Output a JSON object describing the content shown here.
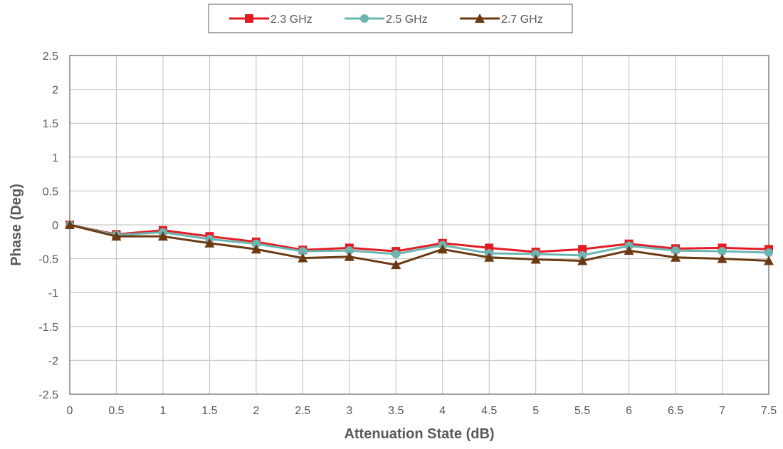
{
  "chart_data": {
    "type": "line",
    "title": "",
    "xlabel": "Attenuation State (dB)",
    "ylabel": "Phase (Deg)",
    "xlim": [
      0,
      7.5
    ],
    "ylim": [
      -2.5,
      2.5
    ],
    "x_ticks": [
      "0",
      "0.5",
      "1",
      "1.5",
      "2",
      "2.5",
      "3",
      "3.5",
      "4",
      "4.5",
      "5",
      "5.5",
      "6",
      "6.5",
      "7",
      "7.5"
    ],
    "y_ticks": [
      "2.5",
      "2",
      "1.5",
      "1",
      "0.5",
      "0",
      "-0.5",
      "-1",
      "-1.5",
      "-2",
      "-2.5"
    ],
    "grid": true,
    "legend_position": "top",
    "x": [
      0,
      0.5,
      1,
      1.5,
      2,
      2.5,
      3,
      3.5,
      4,
      4.5,
      5,
      5.5,
      6,
      6.5,
      7,
      7.5
    ],
    "series": [
      {
        "name": "2.3 GHz",
        "color": "#e31b23",
        "marker": "square",
        "values": [
          0,
          -0.14,
          -0.08,
          -0.17,
          -0.25,
          -0.37,
          -0.34,
          -0.39,
          -0.27,
          -0.34,
          -0.4,
          -0.36,
          -0.28,
          -0.35,
          -0.34,
          -0.36
        ]
      },
      {
        "name": "2.5 GHz",
        "color": "#6cb6b2",
        "marker": "circle",
        "values": [
          0,
          -0.15,
          -0.11,
          -0.21,
          -0.28,
          -0.39,
          -0.38,
          -0.43,
          -0.3,
          -0.42,
          -0.43,
          -0.45,
          -0.31,
          -0.38,
          -0.39,
          -0.41
        ]
      },
      {
        "name": "2.7 GHz",
        "color": "#6b3a12",
        "marker": "triangle",
        "values": [
          0,
          -0.17,
          -0.17,
          -0.27,
          -0.36,
          -0.49,
          -0.47,
          -0.59,
          -0.36,
          -0.48,
          -0.51,
          -0.53,
          -0.38,
          -0.48,
          -0.5,
          -0.53
        ]
      }
    ]
  }
}
